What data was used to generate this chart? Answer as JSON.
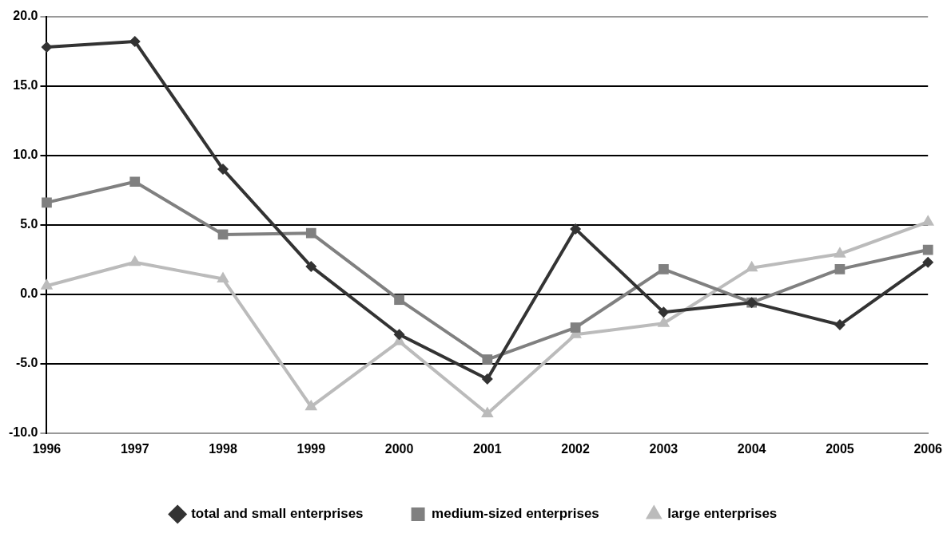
{
  "chart_data": {
    "type": "line",
    "categories": [
      "1996",
      "1997",
      "1998",
      "1999",
      "2000",
      "2001",
      "2002",
      "2003",
      "2004",
      "2005",
      "2006"
    ],
    "series": [
      {
        "name": "total and small enterprises",
        "color": "#333333",
        "marker": "diamond",
        "values": [
          17.8,
          18.2,
          9.0,
          2.0,
          -2.9,
          -6.1,
          4.7,
          -1.3,
          -0.6,
          -2.2,
          2.3
        ]
      },
      {
        "name": "medium-sized enterprises",
        "color": "#808080",
        "marker": "square",
        "values": [
          6.6,
          8.1,
          4.3,
          4.4,
          -0.4,
          -4.7,
          -2.4,
          1.8,
          -0.6,
          1.8,
          3.2
        ]
      },
      {
        "name": "large enterprises",
        "color": "#bbbbbb",
        "marker": "triangle",
        "values": [
          0.6,
          2.3,
          1.1,
          -8.1,
          -3.4,
          -8.6,
          -2.9,
          -2.1,
          1.9,
          2.9,
          5.2
        ]
      }
    ],
    "ylim": [
      -10,
      20
    ],
    "yticks": [
      {
        "value": -10,
        "label": "-10.0"
      },
      {
        "value": -5,
        "label": "-5.0"
      },
      {
        "value": 0,
        "label": "0.0"
      },
      {
        "value": 5,
        "label": "5.0"
      },
      {
        "value": 10,
        "label": "10.0"
      },
      {
        "value": 15,
        "label": "15.0"
      },
      {
        "value": 20,
        "label": "20.0"
      }
    ],
    "grid": "y",
    "legend": "bottom",
    "line_style": "solid"
  }
}
